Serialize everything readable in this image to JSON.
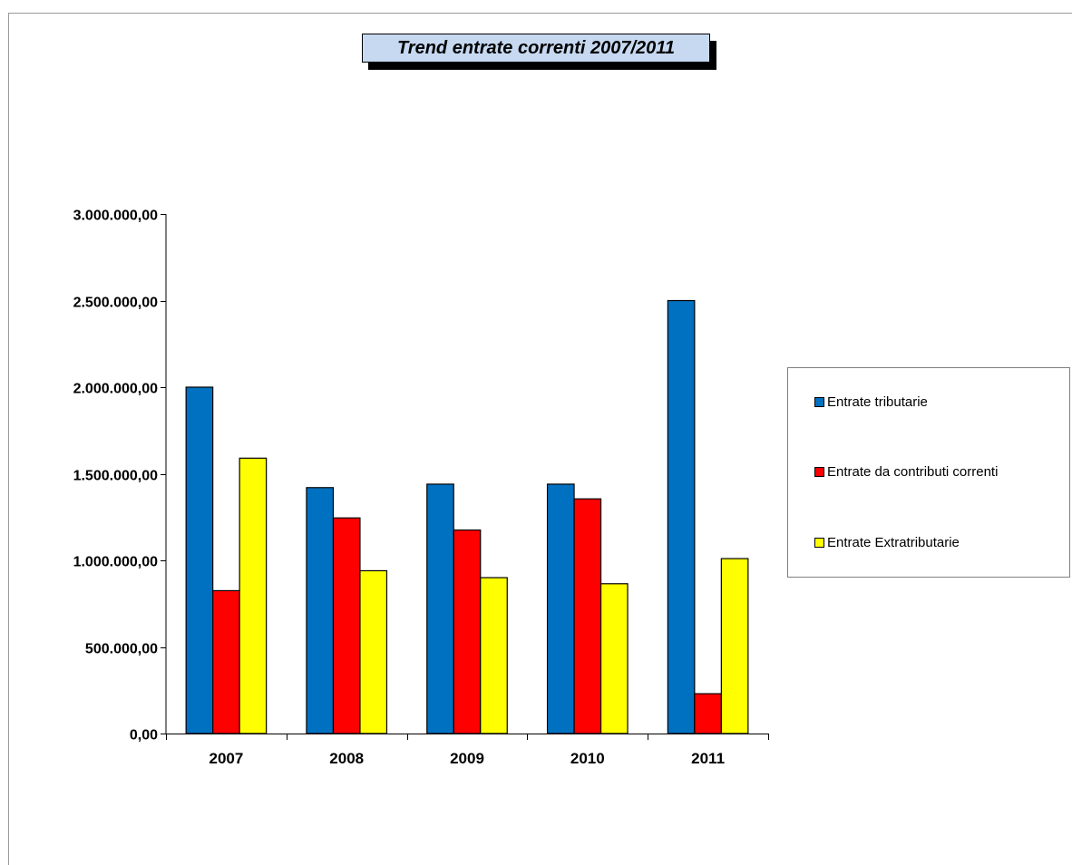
{
  "chart_data": {
    "type": "bar",
    "title": "Trend entrate correnti 2007/2011",
    "categories": [
      "2007",
      "2008",
      "2009",
      "2010",
      "2011"
    ],
    "series": [
      {
        "name": "Entrate tributarie",
        "color": "#0070c0",
        "values": [
          2000000,
          1420000,
          1440000,
          1440000,
          2500000
        ]
      },
      {
        "name": "Entrate da contributi correnti",
        "color": "#ff0000",
        "values": [
          825000,
          1245000,
          1175000,
          1355000,
          230000
        ]
      },
      {
        "name": "Entrate Extratributarie",
        "color": "#ffff00",
        "values": [
          1590000,
          940000,
          900000,
          865000,
          1010000
        ]
      }
    ],
    "ylim": [
      0,
      3000000
    ],
    "yticks": [
      {
        "value": 0,
        "label": "0,00"
      },
      {
        "value": 500000,
        "label": "500.000,00"
      },
      {
        "value": 1000000,
        "label": "1.000.000,00"
      },
      {
        "value": 1500000,
        "label": "1.500.000,00"
      },
      {
        "value": 2000000,
        "label": "2.000.000,00"
      },
      {
        "value": 2500000,
        "label": "2.500.000,00"
      },
      {
        "value": 3000000,
        "label": "3.000.000,00"
      }
    ],
    "xlabel": "",
    "ylabel": "",
    "grid": false,
    "legend_position": "right"
  }
}
